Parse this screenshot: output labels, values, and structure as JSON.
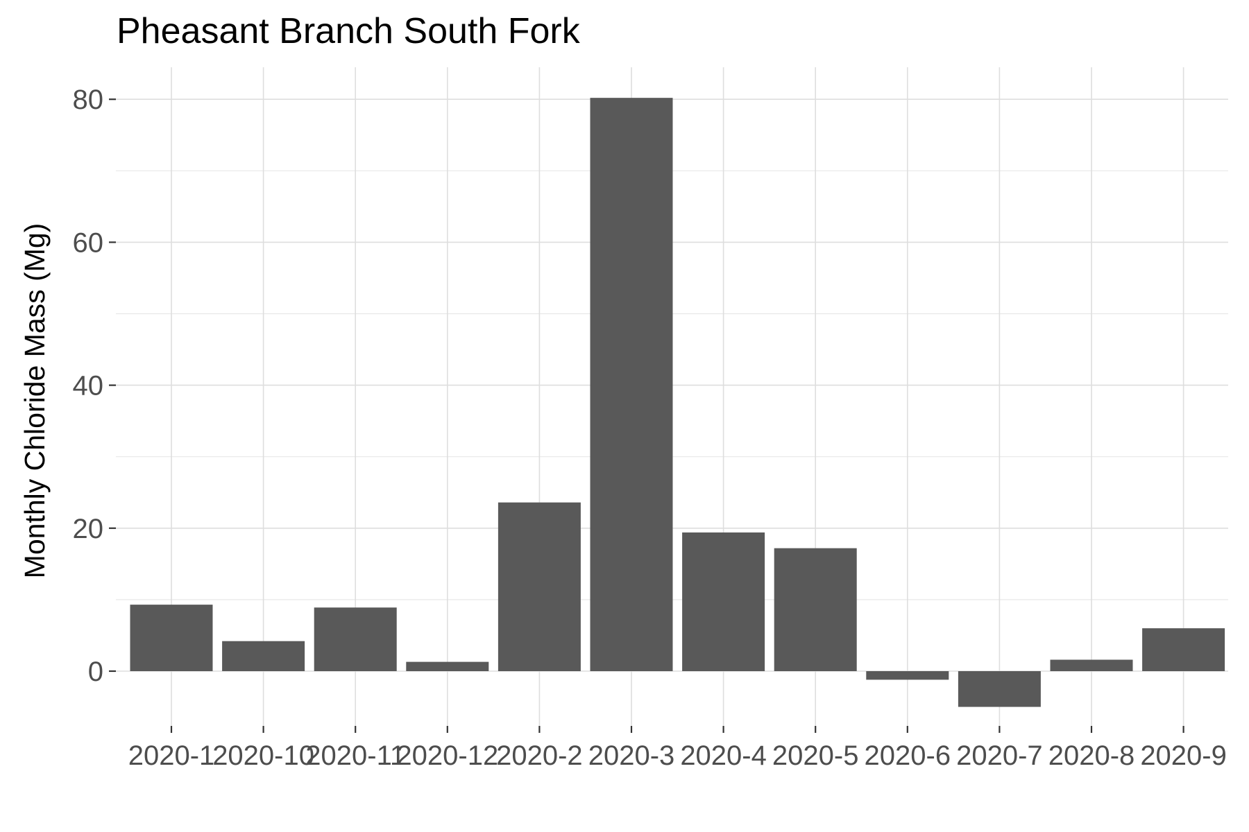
{
  "chart_data": {
    "type": "bar",
    "title": "Pheasant Branch South Fork",
    "xlabel": "",
    "ylabel": "Monthly Chloride Mass  (Mg)",
    "categories": [
      "2020-1",
      "2020-10",
      "2020-11",
      "2020-12",
      "2020-2",
      "2020-3",
      "2020-4",
      "2020-5",
      "2020-6",
      "2020-7",
      "2020-8",
      "2020-9"
    ],
    "values": [
      9.3,
      4.2,
      8.9,
      1.3,
      23.6,
      80.2,
      19.4,
      17.2,
      -1.2,
      -5.0,
      1.6,
      6.0
    ],
    "ylim": [
      -9,
      85
    ],
    "yticks": [
      0,
      20,
      40,
      60,
      80
    ],
    "grid": true,
    "bar_color": "#595959"
  }
}
